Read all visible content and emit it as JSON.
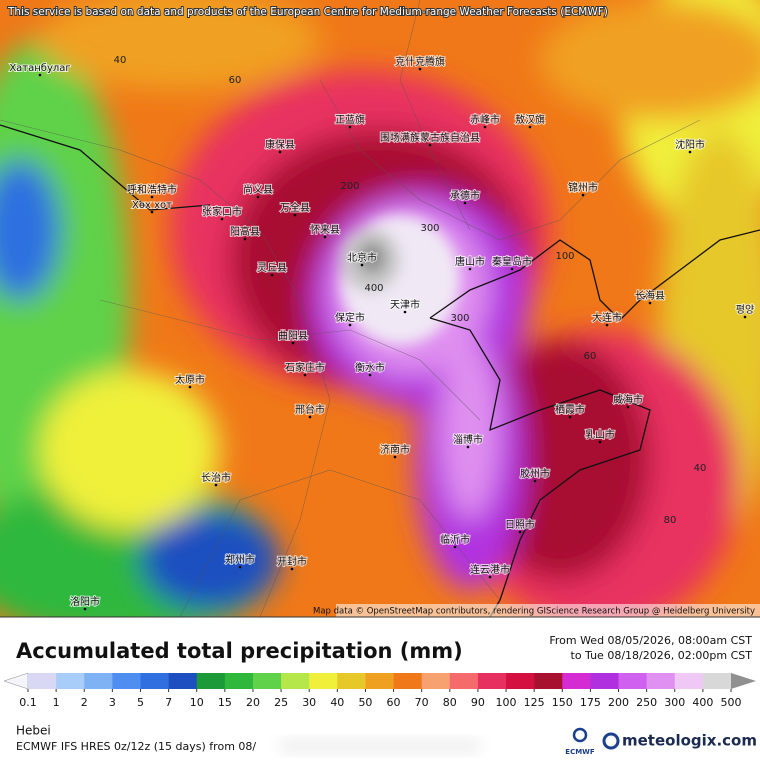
{
  "attribution": "This service is based on data and products of the European Centre for Medium-range Weather Forecasts (ECMWF)",
  "map_credit": "Map data © OpenStreetMap contributors, rendering GIScience Research Group @ Heidelberg University",
  "map_labels": [
    "Хатанбулаг",
    "克什克腾旗",
    "正蓝旗",
    "围场满族蒙古族自治县",
    "赤峰市",
    "敖汉旗",
    "康保县",
    "尚义县",
    "呼和浩特市",
    "Хөх хот",
    "万全县",
    "张家口市",
    "承德市",
    "阳高县",
    "怀来县",
    "北京市",
    "天津市",
    "唐山市",
    "秦皇岛市",
    "锦州市",
    "沈阳市",
    "大连市",
    "长海县",
    "평양",
    "灵丘县",
    "曲阳县",
    "保定市",
    "石家庄市",
    "衡水市",
    "太原市",
    "邢台市",
    "济南市",
    "淄博市",
    "栖霞市",
    "威海市",
    "乳山市",
    "胶州市",
    "日照市",
    "临沂市",
    "连云港市",
    "长治市",
    "郑州市",
    "开封市",
    "洛阳市",
    "300",
    "400",
    "300",
    "200",
    "100",
    "60",
    "40",
    "80",
    "40",
    "60"
  ],
  "title": "Accumulated total precipitation (mm)",
  "period_from": "From Wed 08/05/2026, 08:00am CST",
  "period_to": "to Tue 08/18/2026, 02:00pm CST",
  "legend": {
    "ticks": [
      0.1,
      1,
      2,
      3,
      5,
      7,
      10,
      15,
      20,
      25,
      30,
      40,
      50,
      60,
      70,
      80,
      90,
      100,
      125,
      150,
      175,
      200,
      250,
      300,
      400,
      500
    ],
    "colors": [
      "#f4f4fa",
      "#d8d8f4",
      "#a8cdf9",
      "#7fb2f5",
      "#4f8ef0",
      "#2f6fe0",
      "#1e4fc0",
      "#1c9a3a",
      "#2fb83c",
      "#5fd24a",
      "#b5e64a",
      "#f0f03a",
      "#e6c829",
      "#f0a020",
      "#f07818",
      "#f7a070",
      "#f56a6a",
      "#e83060",
      "#d41040",
      "#a81030",
      "#d42bd2",
      "#b030e0",
      "#d060f0",
      "#e090f0",
      "#f0c8f5",
      "#d8d8d8",
      "#909090"
    ]
  },
  "region": "Hebei",
  "model_line": "ECMWF IFS HRES 0z/12z (15 days) from 08/",
  "ecmwf_logo": "ECMWF",
  "site_logo": "meteologix.com"
}
